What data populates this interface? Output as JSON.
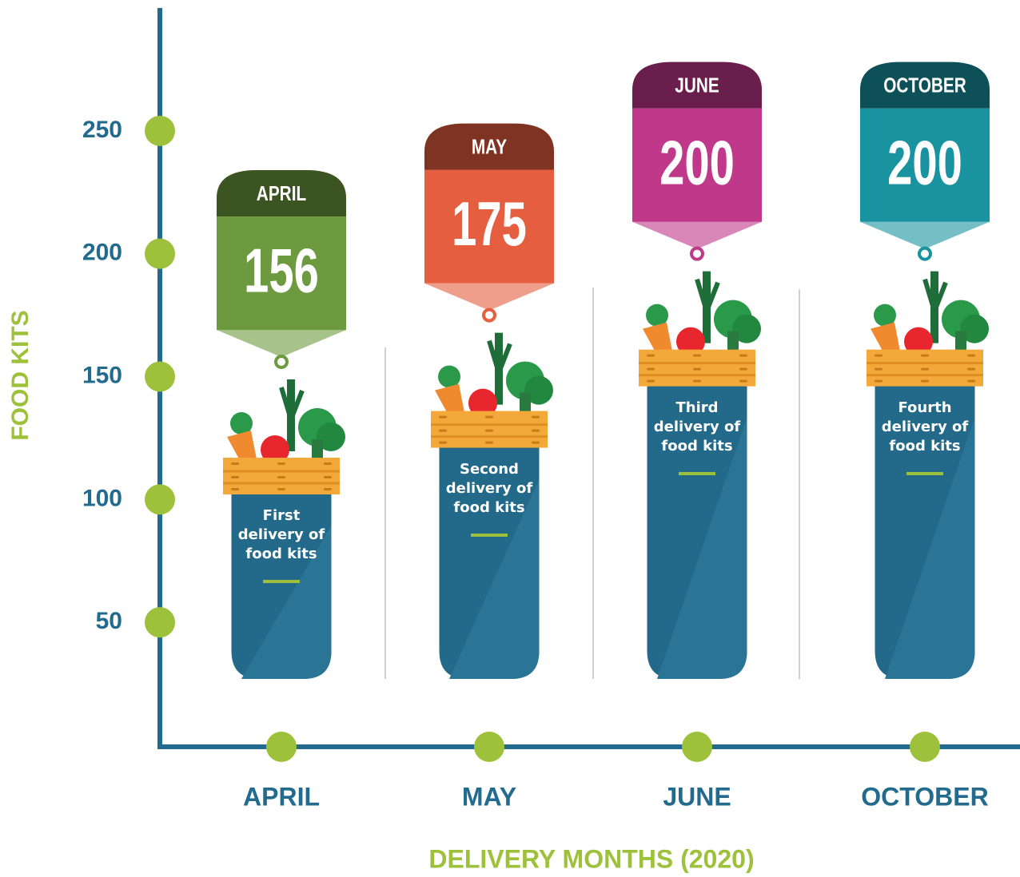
{
  "chart_data": {
    "type": "bar",
    "categories": [
      "APRIL",
      "MAY",
      "JUNE",
      "OCTOBER"
    ],
    "values": [
      156,
      175,
      200,
      200
    ],
    "colors": [
      "#6e9a3f",
      "#e55e40",
      "#c03889",
      "#1a93a0"
    ],
    "descriptions": [
      "First delivery of food kits",
      "Second delivery of food kits",
      "Third delivery of food kits",
      "Fourth delivery of food kits"
    ],
    "ylabel": "FOOD KITS",
    "xlabel": "DELIVERY MONTHS (2020)",
    "ylim": [
      0,
      300
    ],
    "yticks": [
      50,
      100,
      150,
      200,
      250
    ]
  }
}
